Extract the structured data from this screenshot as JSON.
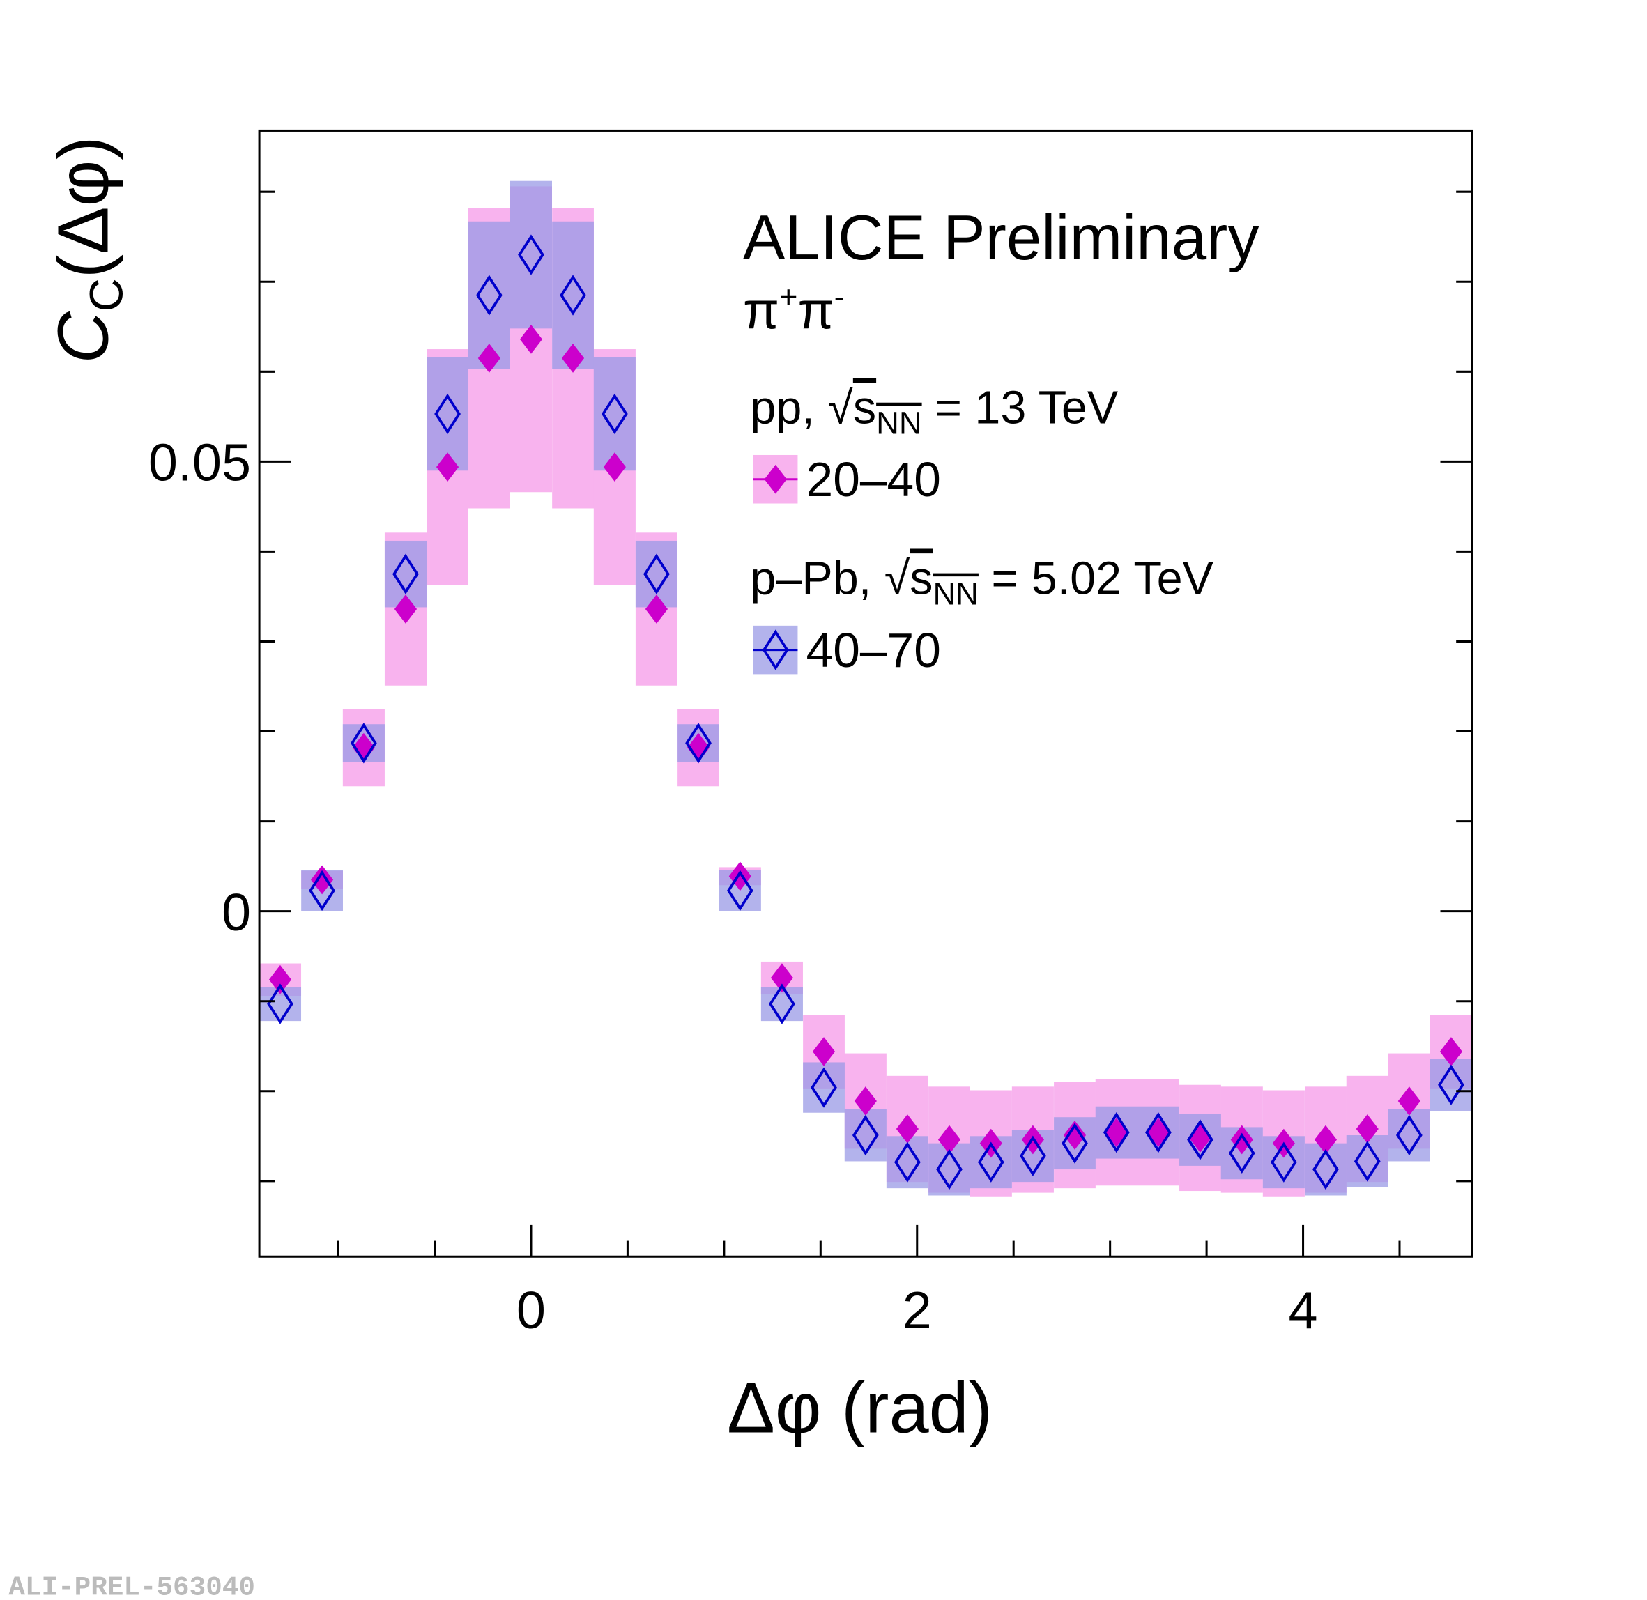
{
  "chart_data": {
    "type": "scatter",
    "xlabel": "Δφ (rad)",
    "ylabel": {
      "symbol": "C",
      "sub": "C",
      "suffix": "(Δφ)"
    },
    "xlim": [
      -1.408,
      4.875
    ],
    "ylim": [
      -0.0384,
      0.0868
    ],
    "xticks": [
      0,
      2,
      4
    ],
    "yticks": [
      0,
      0.05
    ],
    "xminorticks": [
      -1,
      -0.5,
      0.5,
      1,
      1.5,
      2.5,
      3,
      3.5,
      4.5
    ],
    "yminorticks": [
      -0.03,
      -0.02,
      -0.01,
      0.01,
      0.02,
      0.03,
      0.04,
      0.06,
      0.07,
      0.08
    ],
    "annotations": {
      "experiment": "ALICE Preliminary",
      "particle": {
        "p1": "π",
        "s1": "+",
        "p2": "π",
        "s2": "-"
      }
    },
    "x": [
      -1.3,
      -1.083,
      -0.867,
      -0.65,
      -0.433,
      -0.217,
      0,
      0.217,
      0.433,
      0.65,
      0.867,
      1.083,
      1.3,
      1.517,
      1.733,
      1.95,
      2.167,
      2.383,
      2.6,
      2.817,
      3.033,
      3.25,
      3.467,
      3.683,
      3.9,
      4.117,
      4.333,
      4.55,
      4.767
    ],
    "series": [
      {
        "name": "20–40",
        "group": {
          "prefix": "pp, √",
          "s": "s",
          "sub": "NN",
          "suffix": " = 13 TeV"
        },
        "color": "#cc00cc",
        "box_color": "#f59ae8",
        "marker": "filled-diamond",
        "values": [
          -0.0076,
          0.0035,
          0.0182,
          0.0336,
          0.0494,
          0.0615,
          0.0636,
          0.0615,
          0.0494,
          0.0336,
          0.0182,
          0.0039,
          -0.0074,
          -0.0156,
          -0.0211,
          -0.0242,
          -0.0254,
          -0.0258,
          -0.0254,
          -0.0249,
          -0.0246,
          -0.0246,
          -0.0252,
          -0.0254,
          -0.0258,
          -0.0254,
          -0.0242,
          -0.0211,
          -0.0156
        ],
        "sys": [
          0.0018,
          0.001,
          0.0043,
          0.0085,
          0.0131,
          0.0167,
          0.017,
          0.0167,
          0.0131,
          0.0085,
          0.0043,
          0.001,
          0.0018,
          0.0041,
          0.0053,
          0.0059,
          0.0059,
          0.0059,
          0.0059,
          0.0059,
          0.0059,
          0.0059,
          0.0059,
          0.0059,
          0.0059,
          0.0059,
          0.0059,
          0.0053,
          0.0041
        ]
      },
      {
        "name": "40–70",
        "group": {
          "prefix": "p–Pb, √",
          "s": "s",
          "sub": "NN",
          "suffix": " = 5.02 TeV"
        },
        "color": "#0000cc",
        "box_color": "#9a9ae6",
        "marker": "open-diamond",
        "values": [
          -0.0103,
          0.0023,
          0.0187,
          0.0375,
          0.0553,
          0.0685,
          0.073,
          0.0685,
          0.0553,
          0.0375,
          0.0187,
          0.0023,
          -0.0103,
          -0.0196,
          -0.0249,
          -0.0279,
          -0.0287,
          -0.0279,
          -0.0272,
          -0.0258,
          -0.0246,
          -0.0246,
          -0.0254,
          -0.0269,
          -0.0279,
          -0.0287,
          -0.0278,
          -0.0249,
          -0.0193
        ],
        "sys": [
          0.0019,
          0.0023,
          0.0021,
          0.0037,
          0.0063,
          0.0082,
          0.0082,
          0.0082,
          0.0063,
          0.0037,
          0.0021,
          0.0023,
          0.0019,
          0.0028,
          0.0029,
          0.0029,
          0.0029,
          0.0029,
          0.0029,
          0.0029,
          0.0029,
          0.0029,
          0.0029,
          0.0029,
          0.0029,
          0.0029,
          0.0029,
          0.0029,
          0.0029
        ]
      }
    ],
    "watermark": "ALI-PREL-563040"
  }
}
